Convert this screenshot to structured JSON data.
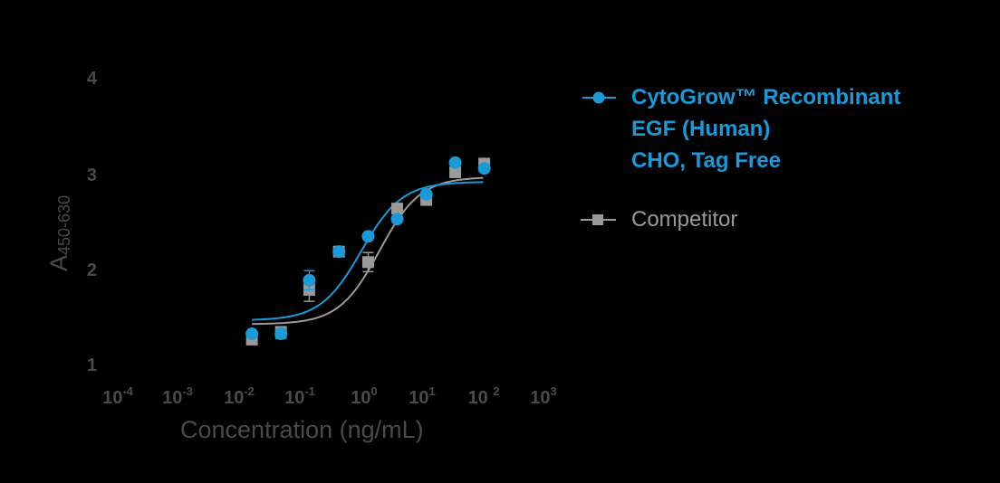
{
  "chart_data": {
    "type": "scatter",
    "title": "",
    "xlabel": "Concentration (ng/mL)",
    "ylabel": "A450-630",
    "ylabel_main": "A",
    "ylabel_sub": "450-630",
    "xscale": "log",
    "xlim": [
      0.0001,
      1000
    ],
    "ylim": [
      1,
      4
    ],
    "grid": false,
    "legend_position": "right",
    "y_ticks": [
      "1",
      "2",
      "3",
      "4"
    ],
    "x_ticks": [
      {
        "base": "10",
        "exp": "-4"
      },
      {
        "base": "10",
        "exp": "-3"
      },
      {
        "base": "10",
        "exp": "-2"
      },
      {
        "base": "10",
        "exp": "-1"
      },
      {
        "base": "10",
        "exp": "0"
      },
      {
        "base": "10",
        "exp": "1"
      },
      {
        "base": "10 ",
        "exp": "2"
      },
      {
        "base": "10",
        "exp": "3"
      }
    ],
    "x": [
      0.016,
      0.048,
      0.14,
      0.43,
      1.3,
      3.9,
      11.7,
      35,
      105
    ],
    "series": [
      {
        "name": "CytoGrow™ Recombinant EGF (Human) CHO, Tag Free",
        "marker": "circle",
        "color": "#1a9ad6",
        "values": [
          1.34,
          1.34,
          1.9,
          2.2,
          2.36,
          2.54,
          2.8,
          3.13,
          3.07
        ],
        "errors": [
          0.02,
          0.05,
          0.1,
          0.03,
          0.03,
          0.03,
          0.03,
          0.03,
          0.03
        ],
        "fit": {
          "bottom": 1.48,
          "top": 2.93,
          "ec50": 1.0,
          "hill": 1.3
        }
      },
      {
        "name": "Competitor",
        "marker": "square",
        "color": "#9a9a9a",
        "values": [
          1.28,
          1.36,
          1.8,
          2.2,
          2.09,
          2.65,
          2.74,
          3.03,
          3.12
        ],
        "errors": [
          0.02,
          0.03,
          0.12,
          0.03,
          0.1,
          0.05,
          0.03,
          0.03,
          0.03
        ],
        "fit": {
          "bottom": 1.44,
          "top": 2.98,
          "ec50": 2.0,
          "hill": 1.3
        }
      }
    ]
  },
  "legend": {
    "items": [
      {
        "lines": [
          "CytoGrow™ Recombinant",
          "EGF (Human)",
          "CHO, Tag Free"
        ]
      },
      {
        "lines": [
          "Competitor"
        ]
      }
    ]
  },
  "axes": {
    "x_title": "Concentration (ng/mL)",
    "y_title_main": "A",
    "y_title_sub": "450-630"
  }
}
